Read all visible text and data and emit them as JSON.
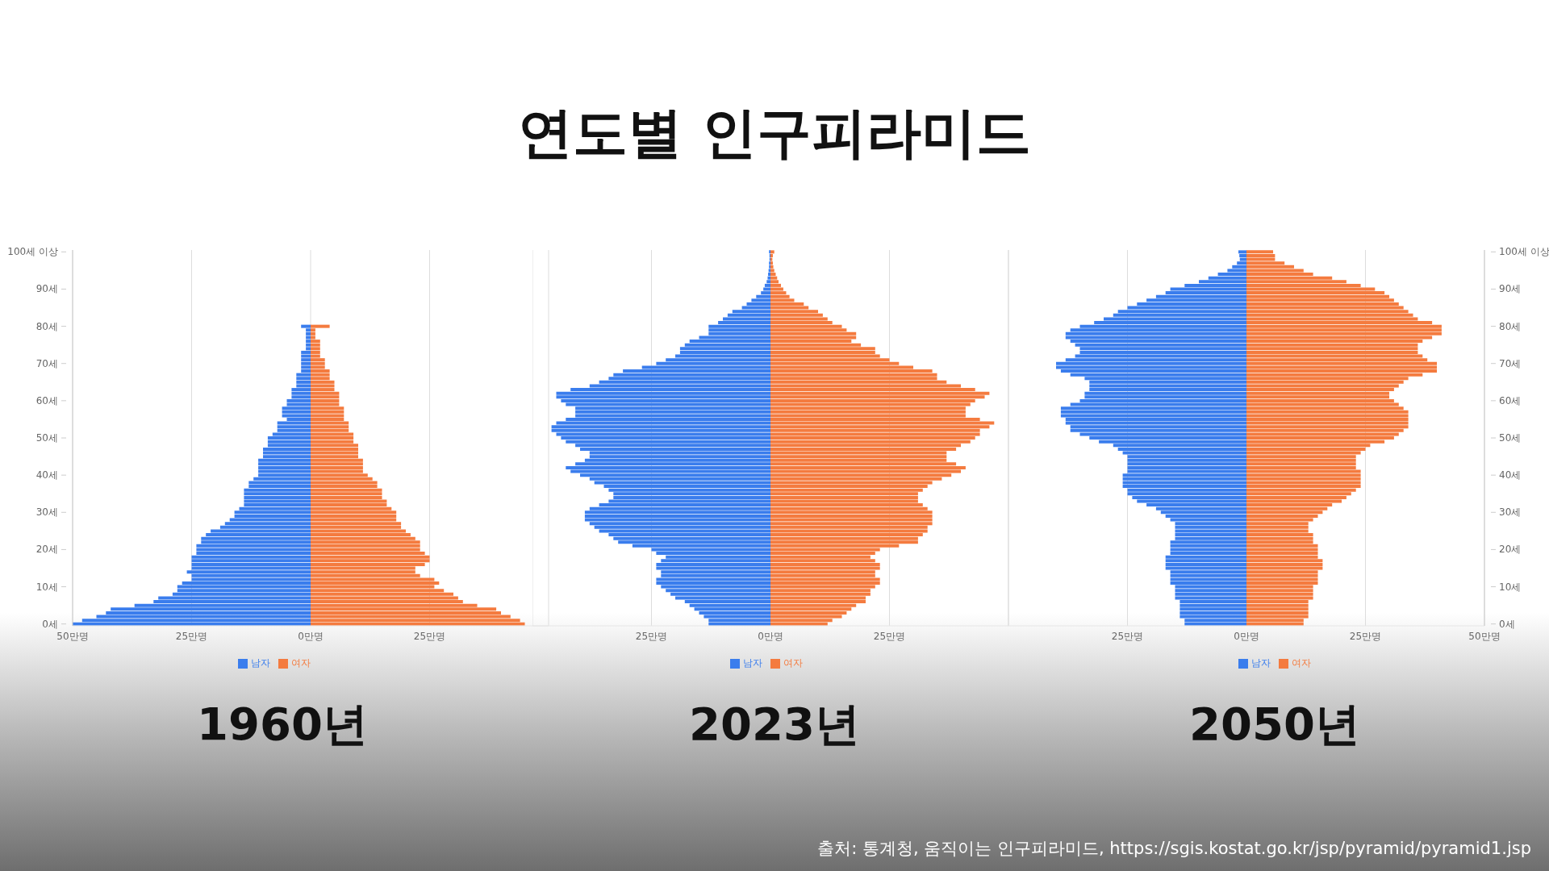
{
  "chart_data": [
    {
      "type": "bar",
      "orientation": "horizontal",
      "stacked": true,
      "title": "1960년",
      "annotations": [
        "연도별 인구피라미드",
        "출처: 통계청, 움직이는 인구피라미드, https://sgis.kostat.go.kr/jsp/pyramid/pyramid1.jsp"
      ],
      "categories": [
        "100세 이상",
        null,
        null,
        null,
        null,
        null,
        null,
        null,
        null,
        null,
        "90세",
        null,
        null,
        null,
        null,
        null,
        null,
        null,
        null,
        null,
        "80세",
        null,
        null,
        null,
        null,
        null,
        null,
        null,
        null,
        null,
        "70세",
        null,
        null,
        null,
        null,
        null,
        null,
        null,
        null,
        null,
        "60세",
        null,
        null,
        null,
        null,
        null,
        null,
        null,
        null,
        null,
        "50세",
        null,
        null,
        null,
        null,
        null,
        null,
        null,
        null,
        null,
        "40세",
        null,
        null,
        null,
        null,
        null,
        null,
        null,
        null,
        null,
        "30세",
        null,
        null,
        null,
        null,
        null,
        null,
        null,
        null,
        null,
        "20세",
        null,
        null,
        null,
        null,
        null,
        null,
        null,
        null,
        null,
        "10세",
        null,
        null,
        null,
        null,
        null,
        null,
        null,
        null,
        null,
        "0세"
      ],
      "xlim": [
        -50,
        50
      ],
      "xticks": [
        {
          "value": -50,
          "label": "50만명"
        },
        {
          "value": -25,
          "label": "25만명"
        },
        {
          "value": 0,
          "label": "0만명"
        },
        {
          "value": 25,
          "label": "25만명"
        }
      ],
      "grid": "x",
      "legend": "bottom",
      "series": [
        {
          "name": "남자",
          "color": "#3a7ded",
          "values": [
            null,
            null,
            null,
            null,
            null,
            null,
            null,
            null,
            null,
            null,
            null,
            null,
            null,
            null,
            null,
            null,
            null,
            null,
            null,
            null,
            -2,
            -1,
            -1,
            -1,
            -1,
            -1,
            -1,
            -2,
            -2,
            -2,
            -2,
            -2,
            -2,
            -3,
            -3,
            -3,
            -3,
            -4,
            -4,
            -4,
            -5,
            -5,
            -6,
            -6,
            -6,
            -5,
            -7,
            -7,
            -7,
            -8,
            -9,
            -9,
            -9,
            -10,
            -10,
            -10,
            -11,
            -11,
            -11,
            -11,
            -11,
            -12,
            -13,
            -13,
            -14,
            -14,
            -14,
            -14,
            -14,
            -15,
            -16,
            -16,
            -17,
            -18,
            -19,
            -21,
            -22,
            -23,
            -23,
            -24,
            -24,
            -24,
            -25,
            -25,
            -25,
            -25,
            -26,
            -25,
            -25,
            -27,
            -28,
            -28,
            -29,
            -32,
            -33,
            -37,
            -42,
            -43,
            -45,
            -48,
            -50
          ]
        },
        {
          "name": "여자",
          "color": "#f47b3f",
          "values": [
            null,
            null,
            null,
            null,
            null,
            null,
            null,
            null,
            null,
            null,
            null,
            null,
            null,
            null,
            null,
            null,
            null,
            null,
            null,
            null,
            4,
            1,
            1,
            1,
            2,
            2,
            2,
            2,
            2,
            3,
            3,
            3,
            4,
            4,
            4,
            5,
            5,
            5,
            6,
            6,
            6,
            6,
            7,
            7,
            7,
            7,
            8,
            8,
            8,
            9,
            9,
            9,
            10,
            10,
            10,
            10,
            11,
            11,
            11,
            11,
            12,
            13,
            14,
            14,
            15,
            15,
            15,
            16,
            16,
            17,
            18,
            18,
            18,
            19,
            19,
            20,
            21,
            22,
            23,
            23,
            23,
            24,
            25,
            25,
            24,
            22,
            22,
            23,
            26,
            27,
            26,
            28,
            30,
            31,
            32,
            35,
            39,
            40,
            42,
            44,
            45
          ]
        }
      ]
    },
    {
      "type": "bar",
      "orientation": "horizontal",
      "stacked": true,
      "title": "2023년",
      "tick_labels": "x",
      "categories": [
        null,
        null,
        null,
        null,
        null,
        null,
        null,
        null,
        null,
        null,
        null,
        null,
        null,
        null,
        null,
        null,
        null,
        null,
        null,
        null,
        null,
        null,
        null,
        null,
        null,
        null,
        null,
        null,
        null,
        null,
        null,
        null,
        null,
        null,
        null,
        null,
        null,
        null,
        null,
        null,
        null,
        null,
        null,
        null,
        null,
        null,
        null,
        null,
        null,
        null,
        null,
        null,
        null,
        null,
        null,
        null,
        null,
        null,
        null,
        null,
        null,
        null,
        null,
        null,
        null,
        null,
        null,
        null,
        null,
        null,
        null,
        null,
        null,
        null,
        null,
        null,
        null,
        null,
        null,
        null,
        null,
        null,
        null,
        null,
        null,
        null,
        null,
        null,
        null,
        null,
        null,
        null,
        null,
        null,
        null,
        null,
        null,
        null,
        null,
        null,
        null
      ],
      "xlim": [
        -50,
        50
      ],
      "xticks": [
        {
          "value": -25,
          "label": "25만명"
        },
        {
          "value": 0,
          "label": "0만명"
        },
        {
          "value": 25,
          "label": "25만명"
        }
      ],
      "grid": "x",
      "legend": "bottom",
      "series": [
        {
          "name": "남자",
          "color": "#3a7ded",
          "values": [
            -0.3,
            -0.2,
            -0.2,
            -0.3,
            -0.3,
            -0.4,
            -0.5,
            -0.6,
            -0.8,
            -1.2,
            -1.5,
            -2,
            -3,
            -4,
            -5,
            -6,
            -8,
            -9,
            -10,
            -11,
            -13,
            -13,
            -13,
            -15,
            -17,
            -18,
            -19,
            -19,
            -20,
            -22,
            -24,
            -27,
            -31,
            -33,
            -34,
            -36,
            -38,
            -42,
            -45,
            -45,
            -44,
            -43,
            -41,
            -41,
            -41,
            -43,
            -45,
            -46,
            -46,
            -45,
            -44,
            -43,
            -41,
            -40,
            -38,
            -38,
            -39,
            -41,
            -43,
            -42,
            -40,
            -38,
            -37,
            -35,
            -34,
            -33,
            -33,
            -34,
            -36,
            -38,
            -39,
            -39,
            -39,
            -38,
            -37,
            -36,
            -34,
            -33,
            -32,
            -29,
            -25,
            -24,
            -22,
            -23,
            -24,
            -24,
            -23,
            -23,
            -24,
            -24,
            -23,
            -22,
            -21,
            -20,
            -18,
            -17,
            -16,
            -15,
            -14,
            -13,
            -13
          ]
        },
        {
          "name": "여자",
          "color": "#f47b3f",
          "values": [
            0.8,
            0.5,
            0.4,
            0.5,
            0.6,
            0.8,
            1.1,
            1.4,
            1.7,
            2.2,
            2.7,
            3.3,
            4,
            5,
            7,
            8,
            10,
            11,
            12,
            13,
            15,
            16,
            18,
            18,
            17,
            19,
            22,
            22,
            23,
            25,
            27,
            30,
            34,
            35,
            35,
            37,
            40,
            43,
            46,
            45,
            43,
            42,
            41,
            41,
            41,
            44,
            47,
            46,
            44,
            44,
            43,
            42,
            40,
            39,
            37,
            37,
            37,
            39,
            41,
            40,
            38,
            36,
            34,
            33,
            32,
            31,
            31,
            31,
            32,
            33,
            34,
            34,
            34,
            34,
            33,
            33,
            32,
            31,
            31,
            27,
            23,
            22,
            21,
            22,
            23,
            23,
            22,
            22,
            23,
            23,
            22,
            21,
            21,
            20,
            20,
            18,
            17,
            16,
            15,
            13,
            12
          ]
        }
      ]
    },
    {
      "type": "bar",
      "orientation": "horizontal",
      "stacked": true,
      "title": "2050년",
      "categories": [
        "100세 이상",
        null,
        null,
        null,
        null,
        null,
        null,
        null,
        null,
        null,
        "90세",
        null,
        null,
        null,
        null,
        null,
        null,
        null,
        null,
        null,
        "80세",
        null,
        null,
        null,
        null,
        null,
        null,
        null,
        null,
        null,
        "70세",
        null,
        null,
        null,
        null,
        null,
        null,
        null,
        null,
        null,
        "60세",
        null,
        null,
        null,
        null,
        null,
        null,
        null,
        null,
        null,
        "50세",
        null,
        null,
        null,
        null,
        null,
        null,
        null,
        null,
        null,
        "40세",
        null,
        null,
        null,
        null,
        null,
        null,
        null,
        null,
        null,
        "30세",
        null,
        null,
        null,
        null,
        null,
        null,
        null,
        null,
        null,
        "20세",
        null,
        null,
        null,
        null,
        null,
        null,
        null,
        null,
        null,
        "10세",
        null,
        null,
        null,
        null,
        null,
        null,
        null,
        null,
        null,
        "0세"
      ],
      "xlim": [
        -50,
        50
      ],
      "xticks": [
        {
          "value": -25,
          "label": "25만명"
        },
        {
          "value": 0,
          "label": "0만명"
        },
        {
          "value": 25,
          "label": "25만명"
        },
        {
          "value": 50,
          "label": "50만명"
        }
      ],
      "grid": "x",
      "legend": "bottom",
      "series": [
        {
          "name": "남자",
          "color": "#3a7ded",
          "values": [
            -1.7,
            -1.5,
            -1.4,
            -2,
            -3,
            -4,
            -6,
            -8,
            -10,
            -13,
            -16,
            -17,
            -19,
            -21,
            -23,
            -25,
            -27,
            -28,
            -30,
            -32,
            -35,
            -37,
            -38,
            -38,
            -37,
            -36,
            -35,
            -35,
            -36,
            -38,
            -40,
            -40,
            -39,
            -37,
            -34,
            -33,
            -33,
            -33,
            -34,
            -34,
            -35,
            -37,
            -39,
            -39,
            -39,
            -38,
            -38,
            -37,
            -37,
            -35,
            -33,
            -31,
            -28,
            -27,
            -26,
            -25,
            -25,
            -25,
            -25,
            -25,
            -26,
            -26,
            -26,
            -26,
            -25,
            -25,
            -24,
            -23,
            -21,
            -19,
            -18,
            -17,
            -16,
            -15,
            -15,
            -15,
            -15,
            -15,
            -16,
            -16,
            -16,
            -16,
            -17,
            -17,
            -17,
            -17,
            -16,
            -16,
            -16,
            -16,
            -15,
            -15,
            -15,
            -15,
            -14,
            -14,
            -14,
            -14,
            -14,
            -13,
            -13
          ]
        },
        {
          "name": "여자",
          "color": "#f47b3f",
          "values": [
            5.6,
            6,
            6,
            8,
            10,
            12,
            14,
            18,
            21,
            24,
            27,
            29,
            30,
            31,
            32,
            33,
            34,
            35,
            36,
            39,
            41,
            41,
            41,
            39,
            37,
            36,
            36,
            36,
            37,
            38,
            40,
            40,
            40,
            37,
            34,
            33,
            32,
            31,
            30,
            30,
            31,
            32,
            33,
            34,
            34,
            34,
            34,
            34,
            33,
            32,
            31,
            29,
            26,
            25,
            24,
            23,
            23,
            23,
            23,
            24,
            24,
            24,
            24,
            24,
            23,
            22,
            21,
            20,
            18,
            17,
            16,
            15,
            14,
            13,
            13,
            13,
            14,
            14,
            14,
            15,
            15,
            15,
            15,
            16,
            16,
            16,
            15,
            15,
            15,
            15,
            14,
            14,
            14,
            14,
            13,
            13,
            13,
            13,
            13,
            12,
            12
          ]
        }
      ]
    }
  ]
}
